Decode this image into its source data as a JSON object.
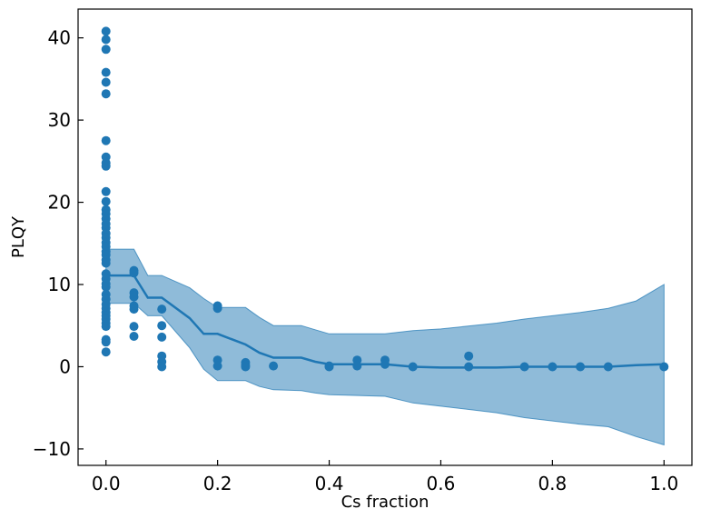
{
  "chart_data": {
    "type": "scatter",
    "title": "",
    "xlabel": "Cs fraction",
    "ylabel": "PLQY",
    "xlim": [
      -0.05,
      1.05
    ],
    "ylim": [
      -12,
      43.5
    ],
    "xticks": [
      0.0,
      0.2,
      0.4,
      0.6,
      0.8,
      1.0
    ],
    "xtick_labels": [
      "0.0",
      "0.2",
      "0.4",
      "0.6",
      "0.8",
      "1.0"
    ],
    "yticks": [
      -10,
      0,
      10,
      20,
      30,
      40
    ],
    "ytick_labels": [
      "−10",
      "0",
      "10",
      "20",
      "30",
      "40"
    ],
    "grid": false,
    "colors": {
      "points": "#1f77b4",
      "line": "#1f77b4",
      "band": "#1f77b4",
      "band_opacity": 0.5
    },
    "scatter": {
      "x": [
        0,
        0,
        0,
        0,
        0,
        0,
        0,
        0,
        0,
        0,
        0,
        0,
        0,
        0,
        0,
        0,
        0,
        0,
        0,
        0,
        0,
        0,
        0,
        0,
        0,
        0,
        0,
        0,
        0,
        0,
        0,
        0,
        0,
        0,
        0,
        0,
        0,
        0,
        0,
        0,
        0,
        0.05,
        0.05,
        0.05,
        0.05,
        0.05,
        0.05,
        0.05,
        0.05,
        0.1,
        0.1,
        0.1,
        0.1,
        0.1,
        0.1,
        0.2,
        0.2,
        0.2,
        0.2,
        0.25,
        0.25,
        0.25,
        0.3,
        0.4,
        0.4,
        0.45,
        0.45,
        0.5,
        0.5,
        0.55,
        0.65,
        0.65,
        0.75,
        0.8,
        0.85,
        0.9,
        1.0
      ],
      "y": [
        40.8,
        39.8,
        38.6,
        35.8,
        34.6,
        33.2,
        27.5,
        25.5,
        24.8,
        24.4,
        21.3,
        20.1,
        19.1,
        18.6,
        18.0,
        17.4,
        16.9,
        16.2,
        15.7,
        15.1,
        14.6,
        14.0,
        13.6,
        13.0,
        12.6,
        11.3,
        10.7,
        10.1,
        9.7,
        8.8,
        8.2,
        7.6,
        7.1,
        6.6,
        6.2,
        5.8,
        5.3,
        4.9,
        3.3,
        3.0,
        1.8,
        11.7,
        11.4,
        9.0,
        8.5,
        7.4,
        7.0,
        4.9,
        3.7,
        7.0,
        5.0,
        3.6,
        1.3,
        0.6,
        0.0,
        7.4,
        7.1,
        0.8,
        0.1,
        0.5,
        0.2,
        0.0,
        0.1,
        0.1,
        0.0,
        0.8,
        0.1,
        0.8,
        0.3,
        0.0,
        1.3,
        0.0,
        0.0,
        0.0,
        0.0,
        0.0,
        0.0
      ]
    },
    "mean_line": {
      "x": [
        0.0,
        0.05,
        0.075,
        0.1,
        0.15,
        0.175,
        0.2,
        0.25,
        0.275,
        0.3,
        0.35,
        0.375,
        0.4,
        0.5,
        0.55,
        0.6,
        0.7,
        0.75,
        0.85,
        0.9,
        0.95,
        1.0
      ],
      "y": [
        11.1,
        11.1,
        8.4,
        8.4,
        5.9,
        4.0,
        4.0,
        2.7,
        1.7,
        1.1,
        1.1,
        0.6,
        0.3,
        0.3,
        0.0,
        -0.1,
        -0.1,
        0.0,
        0.0,
        0.0,
        0.2,
        0.3
      ]
    },
    "confidence_band": {
      "x": [
        0.0,
        0.05,
        0.075,
        0.1,
        0.15,
        0.175,
        0.2,
        0.25,
        0.275,
        0.3,
        0.35,
        0.375,
        0.4,
        0.5,
        0.55,
        0.6,
        0.7,
        0.75,
        0.85,
        0.9,
        0.95,
        1.0
      ],
      "upper": [
        14.3,
        14.3,
        11.1,
        11.1,
        9.6,
        8.3,
        7.2,
        7.2,
        6.0,
        5.0,
        5.0,
        4.5,
        4.0,
        4.0,
        4.4,
        4.6,
        5.3,
        5.8,
        6.6,
        7.1,
        8.0,
        10.0
      ],
      "lower": [
        7.7,
        7.7,
        6.2,
        6.2,
        2.3,
        -0.3,
        -1.7,
        -1.7,
        -2.4,
        -2.8,
        -2.9,
        -3.2,
        -3.4,
        -3.6,
        -4.4,
        -4.8,
        -5.6,
        -6.2,
        -7.0,
        -7.3,
        -8.5,
        -9.5
      ]
    }
  }
}
